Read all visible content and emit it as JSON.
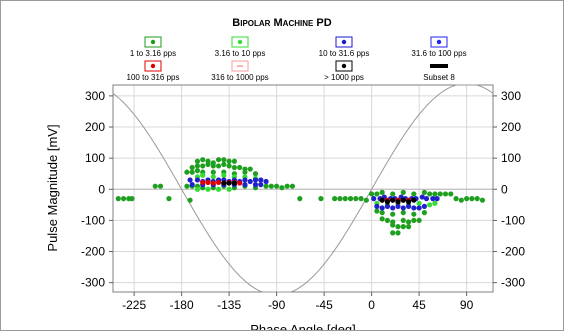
{
  "chart_data": {
    "type": "scatter",
    "title": "Bipolar Machine PD",
    "xlabel": "Phase Angle [deg]",
    "ylabel": "Pulse Magnitude [mV]",
    "xlim": [
      -245,
      115
    ],
    "ylim": [
      -330,
      335
    ],
    "x_ticks": [
      -225,
      -180,
      -135,
      -90,
      -45,
      0,
      45,
      90
    ],
    "y_ticks": [
      300,
      200,
      100,
      0,
      -100,
      -200,
      -300
    ],
    "grid": true,
    "legend_position": "top",
    "legend": [
      {
        "label": "1 to 3.16 pps",
        "color": "#1a9a1a",
        "marker": "dot"
      },
      {
        "label": "3.16 to 10 pps",
        "color": "#33dd33",
        "marker": "dot"
      },
      {
        "label": "10 to 31.6 pps",
        "color": "#1a1acc",
        "marker": "dot"
      },
      {
        "label": "31.6 to 100 pps",
        "color": "#2222ee",
        "marker": "dot"
      },
      {
        "label": "100 to 316 pps",
        "color": "#dd0000",
        "marker": "dot"
      },
      {
        "label": "316 to 1000 pps",
        "color": "#ff9999",
        "marker": "dash"
      },
      {
        "label": "> 1000 pps",
        "color": "#000000",
        "marker": "dot"
      },
      {
        "label": "Subset 8",
        "color": "#000000",
        "marker": "bar"
      }
    ],
    "reference_curve": {
      "type": "sine",
      "amplitude": 340,
      "color": "#999999"
    },
    "colors": {
      "green": "#1f9f1f",
      "light_green": "#33dd33",
      "blue": "#2020cc",
      "red": "#dd0000",
      "black": "#000000"
    },
    "series": [
      {
        "color": "green",
        "points": [
          [
            -240,
            -30
          ],
          [
            -235,
            -30
          ],
          [
            -230,
            -30
          ],
          [
            -227,
            -30
          ],
          [
            -205,
            10
          ],
          [
            -200,
            10
          ],
          [
            -192,
            -30
          ],
          [
            -172,
            -35
          ],
          [
            -165,
            90
          ],
          [
            -160,
            95
          ],
          [
            -155,
            90
          ],
          [
            -150,
            85
          ],
          [
            -145,
            95
          ],
          [
            -140,
            95
          ],
          [
            -135,
            90
          ],
          [
            -130,
            90
          ],
          [
            -170,
            70
          ],
          [
            -165,
            75
          ],
          [
            -160,
            75
          ],
          [
            -155,
            80
          ],
          [
            -150,
            75
          ],
          [
            -145,
            75
          ],
          [
            -140,
            80
          ],
          [
            -135,
            75
          ],
          [
            -130,
            70
          ],
          [
            -125,
            70
          ],
          [
            -120,
            65
          ],
          [
            -115,
            65
          ],
          [
            -175,
            55
          ],
          [
            -170,
            55
          ],
          [
            -165,
            60
          ],
          [
            -160,
            55
          ],
          [
            -150,
            55
          ],
          [
            -140,
            55
          ],
          [
            -130,
            50
          ],
          [
            -120,
            55
          ],
          [
            -110,
            50
          ],
          [
            -175,
            10
          ],
          [
            -170,
            10
          ],
          [
            -165,
            10
          ],
          [
            -160,
            5
          ],
          [
            -150,
            5
          ],
          [
            -140,
            10
          ],
          [
            -130,
            5
          ],
          [
            -120,
            10
          ],
          [
            -110,
            5
          ],
          [
            -100,
            10
          ],
          [
            -95,
            10
          ],
          [
            -90,
            10
          ],
          [
            -85,
            5
          ],
          [
            -80,
            10
          ],
          [
            -75,
            10
          ],
          [
            -68,
            -30
          ],
          [
            -48,
            -30
          ],
          [
            -35,
            -30
          ],
          [
            -30,
            -30
          ],
          [
            -25,
            -30
          ],
          [
            -20,
            -30
          ],
          [
            -15,
            -30
          ],
          [
            -10,
            -30
          ],
          [
            -5,
            -35
          ],
          [
            0,
            -15
          ],
          [
            5,
            -15
          ],
          [
            10,
            -10
          ],
          [
            20,
            -15
          ],
          [
            30,
            -10
          ],
          [
            40,
            -15
          ],
          [
            50,
            -10
          ],
          [
            55,
            -15
          ],
          [
            60,
            -15
          ],
          [
            65,
            -15
          ],
          [
            70,
            -15
          ],
          [
            75,
            -15
          ],
          [
            5,
            -70
          ],
          [
            10,
            -75
          ],
          [
            20,
            -80
          ],
          [
            30,
            -75
          ],
          [
            40,
            -80
          ],
          [
            50,
            -75
          ],
          [
            10,
            -95
          ],
          [
            15,
            -100
          ],
          [
            20,
            -105
          ],
          [
            30,
            -100
          ],
          [
            35,
            -105
          ],
          [
            40,
            -100
          ],
          [
            45,
            -100
          ],
          [
            20,
            -115
          ],
          [
            25,
            -120
          ],
          [
            30,
            -120
          ],
          [
            35,
            -120
          ],
          [
            20,
            -140
          ],
          [
            25,
            -140
          ],
          [
            80,
            -30
          ],
          [
            85,
            -35
          ],
          [
            90,
            -30
          ],
          [
            95,
            -30
          ],
          [
            100,
            -30
          ],
          [
            105,
            -35
          ]
        ]
      },
      {
        "color": "light_green",
        "points": [
          [
            -165,
            40
          ],
          [
            -160,
            45
          ],
          [
            -150,
            40
          ],
          [
            -140,
            45
          ],
          [
            -130,
            40
          ],
          [
            -120,
            40
          ],
          [
            -110,
            35
          ],
          [
            -165,
            0
          ],
          [
            -155,
            0
          ],
          [
            -145,
            0
          ],
          [
            -135,
            0
          ],
          [
            5,
            -45
          ],
          [
            15,
            -50
          ],
          [
            25,
            -45
          ],
          [
            35,
            -50
          ],
          [
            45,
            -45
          ],
          [
            55,
            -50
          ],
          [
            60,
            -45
          ]
        ]
      },
      {
        "color": "blue",
        "points": [
          [
            -172,
            30
          ],
          [
            -165,
            30
          ],
          [
            -160,
            25
          ],
          [
            -155,
            30
          ],
          [
            -150,
            25
          ],
          [
            -145,
            30
          ],
          [
            -140,
            30
          ],
          [
            -135,
            25
          ],
          [
            -130,
            30
          ],
          [
            -125,
            25
          ],
          [
            -120,
            30
          ],
          [
            -115,
            25
          ],
          [
            -110,
            30
          ],
          [
            -105,
            30
          ],
          [
            -100,
            25
          ],
          [
            -170,
            15
          ],
          [
            -160,
            15
          ],
          [
            -150,
            15
          ],
          [
            -140,
            15
          ],
          [
            -130,
            15
          ],
          [
            -120,
            15
          ],
          [
            -110,
            15
          ],
          [
            -105,
            15
          ],
          [
            2,
            -30
          ],
          [
            8,
            -30
          ],
          [
            12,
            -25
          ],
          [
            18,
            -30
          ],
          [
            22,
            -30
          ],
          [
            28,
            -25
          ],
          [
            32,
            -30
          ],
          [
            38,
            -30
          ],
          [
            42,
            -30
          ],
          [
            48,
            -25
          ],
          [
            52,
            -30
          ],
          [
            58,
            -30
          ],
          [
            62,
            -30
          ],
          [
            5,
            -55
          ],
          [
            10,
            -60
          ],
          [
            15,
            -55
          ],
          [
            20,
            -60
          ],
          [
            25,
            -55
          ],
          [
            30,
            -60
          ],
          [
            35,
            -55
          ],
          [
            40,
            -60
          ],
          [
            45,
            -60
          ],
          [
            50,
            -55
          ]
        ]
      },
      {
        "color": "red",
        "points": [
          [
            -160,
            22
          ],
          [
            -155,
            22
          ],
          [
            -150,
            20
          ],
          [
            -145,
            22
          ],
          [
            -140,
            20
          ],
          [
            -135,
            22
          ],
          [
            -130,
            22
          ],
          [
            -125,
            20
          ],
          [
            10,
            -35
          ],
          [
            15,
            -35
          ],
          [
            20,
            -35
          ],
          [
            25,
            -35
          ],
          [
            30,
            -35
          ],
          [
            35,
            -35
          ]
        ]
      },
      {
        "color": "black",
        "points": [
          [
            -140,
            20
          ],
          [
            -135,
            20
          ],
          [
            -130,
            20
          ],
          [
            10,
            -35
          ],
          [
            15,
            -40
          ],
          [
            20,
            -35
          ],
          [
            25,
            -40
          ],
          [
            30,
            -35
          ],
          [
            35,
            -40
          ],
          [
            40,
            -35
          ]
        ]
      }
    ]
  }
}
